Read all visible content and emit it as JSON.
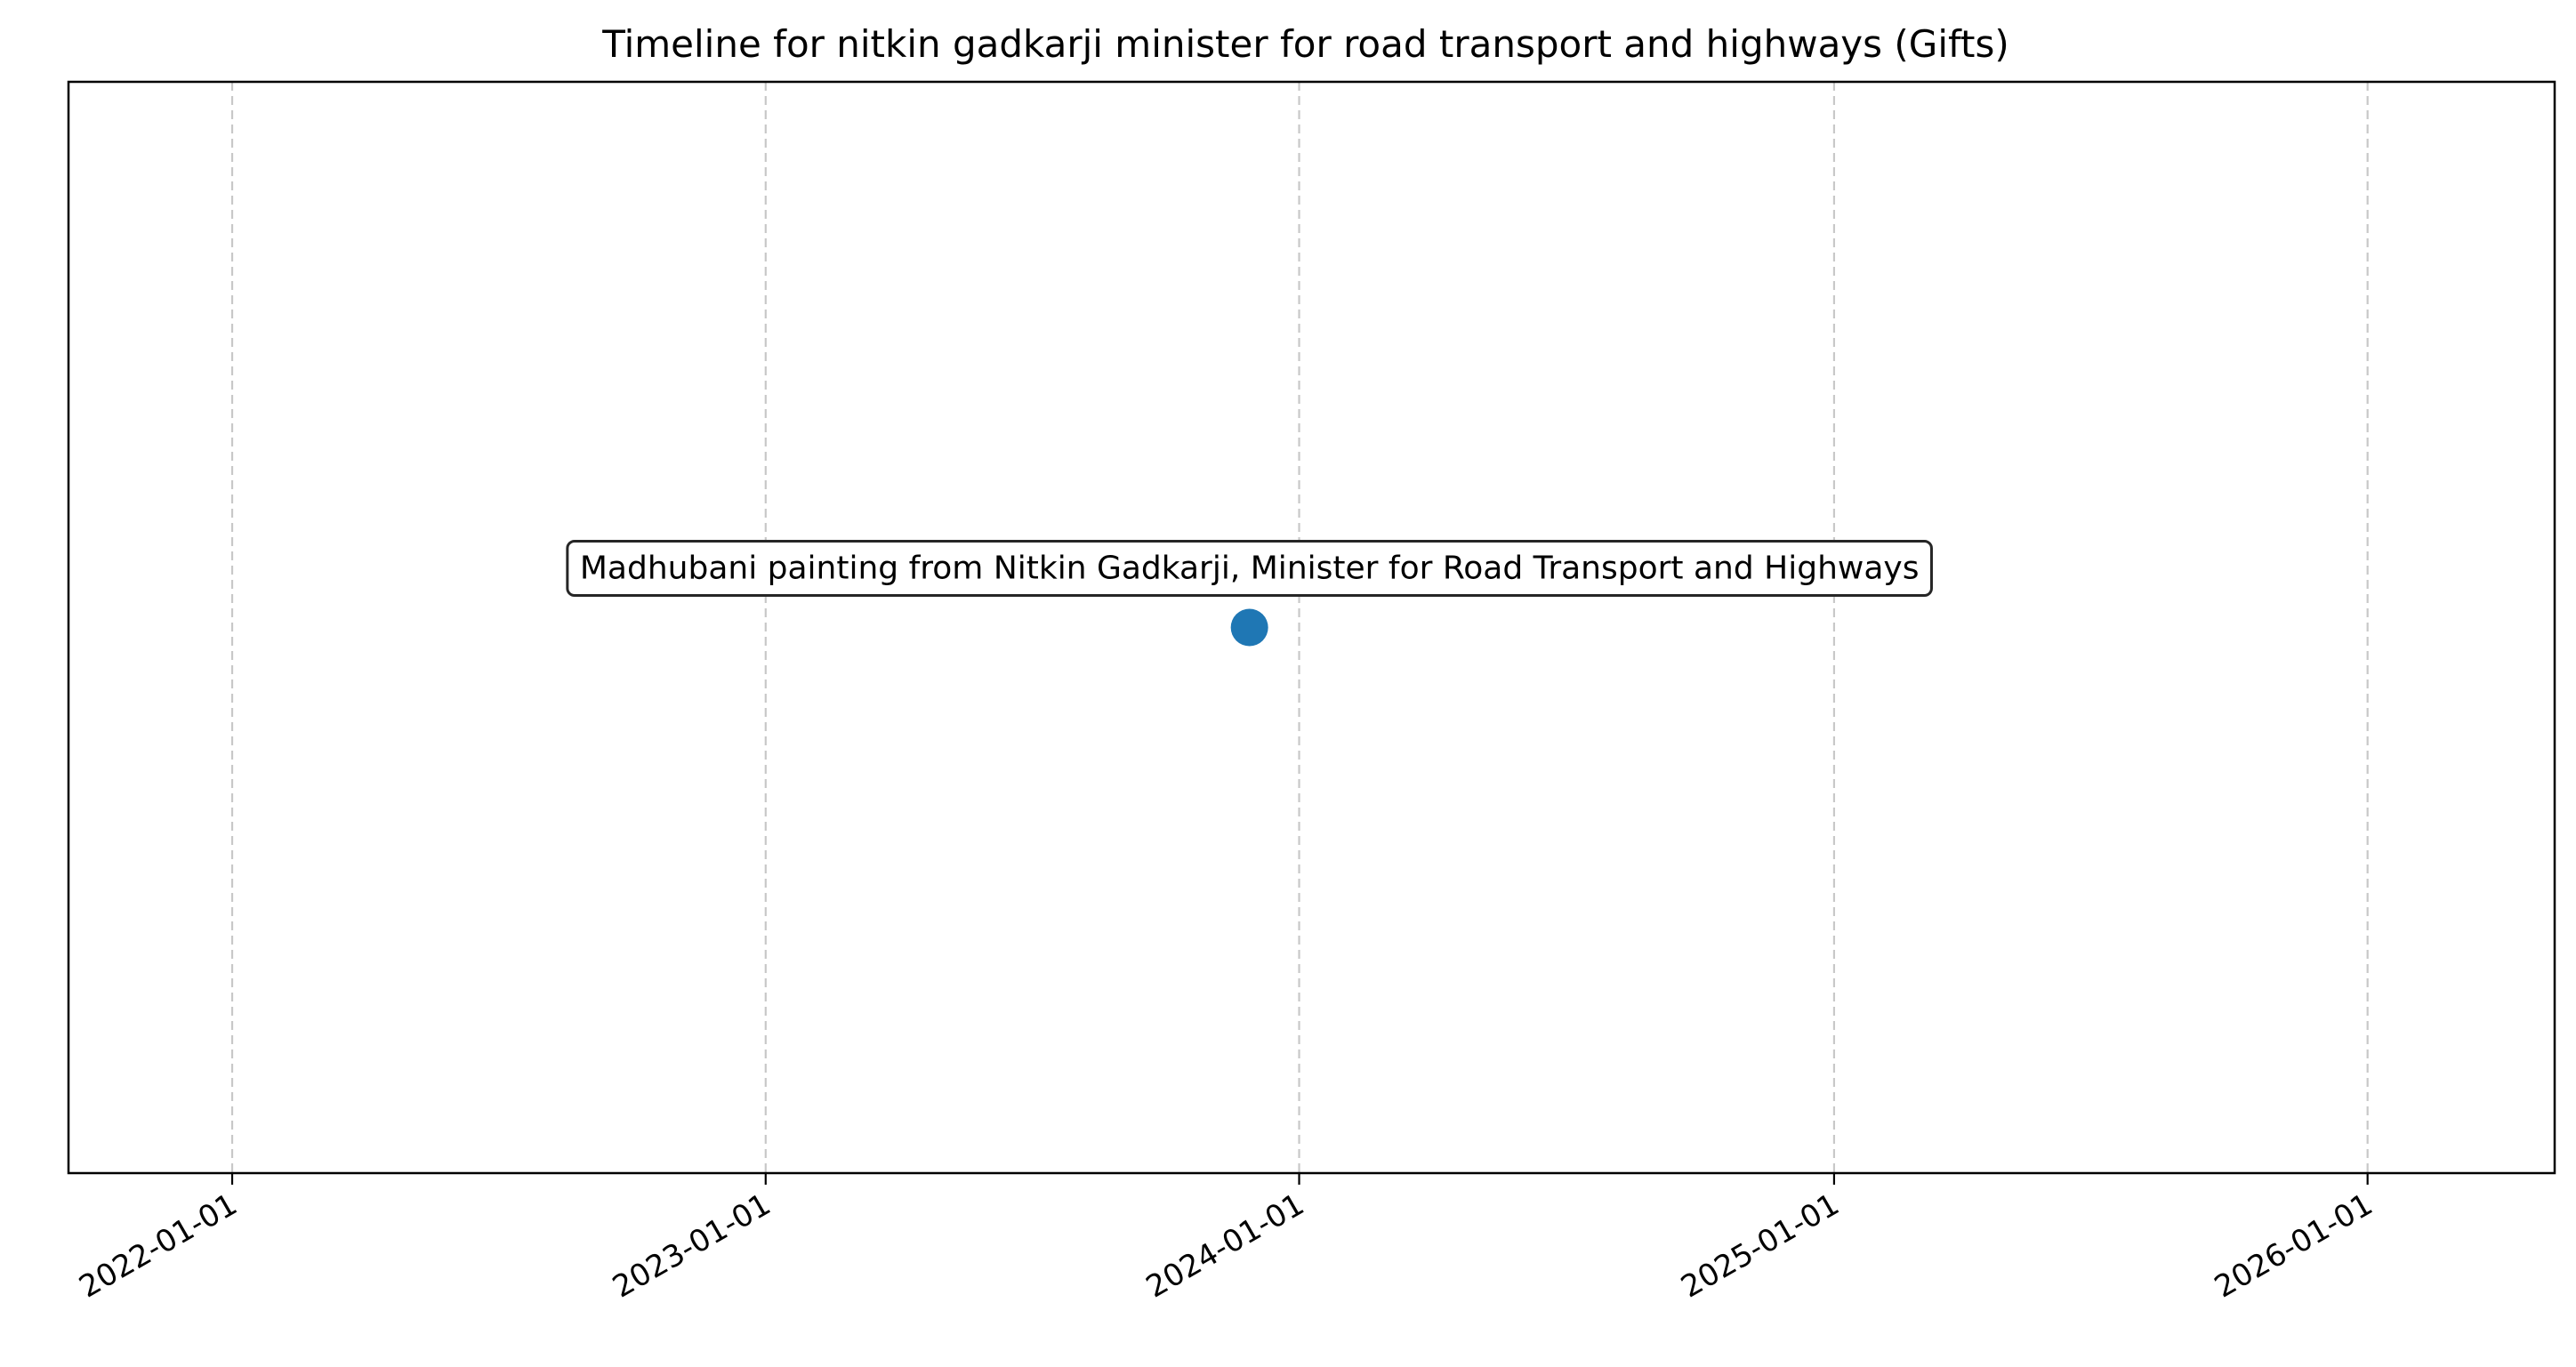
{
  "chart_data": {
    "type": "scatter",
    "title": "Timeline for nitkin gadkarji minister for road transport and highways (Gifts)",
    "xlabel": "",
    "ylabel": "",
    "x_axis_type": "date",
    "xlim": [
      "2021-09-11",
      "2026-05-09"
    ],
    "ylim": [
      -1,
      1
    ],
    "x_ticks": [
      "2022-01-01",
      "2023-01-01",
      "2024-01-01",
      "2025-01-01",
      "2026-01-01"
    ],
    "x_tick_rotation_deg": 30,
    "grid": {
      "x": true,
      "y": false,
      "style": "dashed"
    },
    "y_axis_visible": false,
    "points": [
      {
        "x": "2023-11-28",
        "y": 0,
        "label": "Madhubani painting from Nitkin Gadkarji, Minister for Road Transport and Highways"
      }
    ],
    "colors": {
      "marker": "#1f77b4",
      "grid": "#c8c8c8",
      "axis": "#000000",
      "annotation_border": "#262626",
      "annotation_fill": "#ffffff"
    }
  }
}
